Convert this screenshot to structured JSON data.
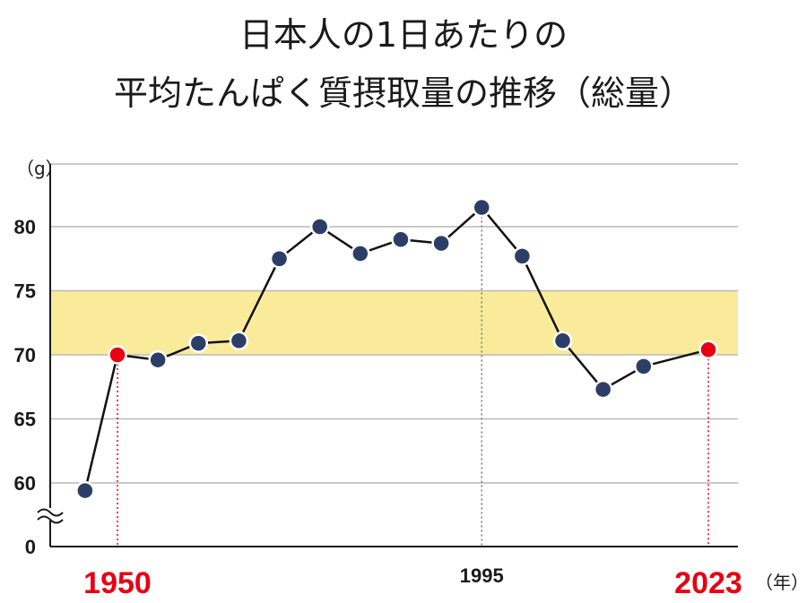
{
  "chart_data": {
    "type": "line",
    "title_lines": [
      "日本人の1日あたりの",
      "平均たんぱく質摂取量の推移（総量）"
    ],
    "y_unit": "（g）",
    "x_unit": "（年）",
    "y_ticks": [
      {
        "value": 0,
        "label": "0"
      },
      {
        "value": 60,
        "label": "60"
      },
      {
        "value": 65,
        "label": "65"
      },
      {
        "value": 70,
        "label": "70"
      },
      {
        "value": 75,
        "label": "75"
      },
      {
        "value": 80,
        "label": "80"
      }
    ],
    "y_axis_break": true,
    "x_ticks": [
      {
        "year": 1950,
        "label": "1950",
        "color": "#e60012"
      },
      {
        "year": 1995,
        "label": "1995",
        "color": "#1a1a1a"
      },
      {
        "year": 2023,
        "label": "2023",
        "color": "#e60012"
      }
    ],
    "highlight_band": {
      "from": 70,
      "to": 75,
      "color": "#faeb9b"
    },
    "grid": true,
    "series": [
      {
        "color": "#2c3e66",
        "line_color": "#111111",
        "points": [
          {
            "x": 1946,
            "y": 59.4
          },
          {
            "x": 1950,
            "y": 70.0,
            "highlight": true
          },
          {
            "x": 1955,
            "y": 69.6
          },
          {
            "x": 1960,
            "y": 70.9
          },
          {
            "x": 1965,
            "y": 71.1
          },
          {
            "x": 1970,
            "y": 77.5
          },
          {
            "x": 1975,
            "y": 80.0
          },
          {
            "x": 1980,
            "y": 77.9
          },
          {
            "x": 1985,
            "y": 79.0
          },
          {
            "x": 1990,
            "y": 78.7
          },
          {
            "x": 1995,
            "y": 81.5,
            "marker_line": true
          },
          {
            "x": 2000,
            "y": 77.7
          },
          {
            "x": 2005,
            "y": 71.1
          },
          {
            "x": 2010,
            "y": 67.3
          },
          {
            "x": 2015,
            "y": 69.1
          },
          {
            "x": 2023,
            "y": 70.4,
            "highlight": true
          }
        ]
      }
    ],
    "highlight_point_color": "#e60012"
  }
}
